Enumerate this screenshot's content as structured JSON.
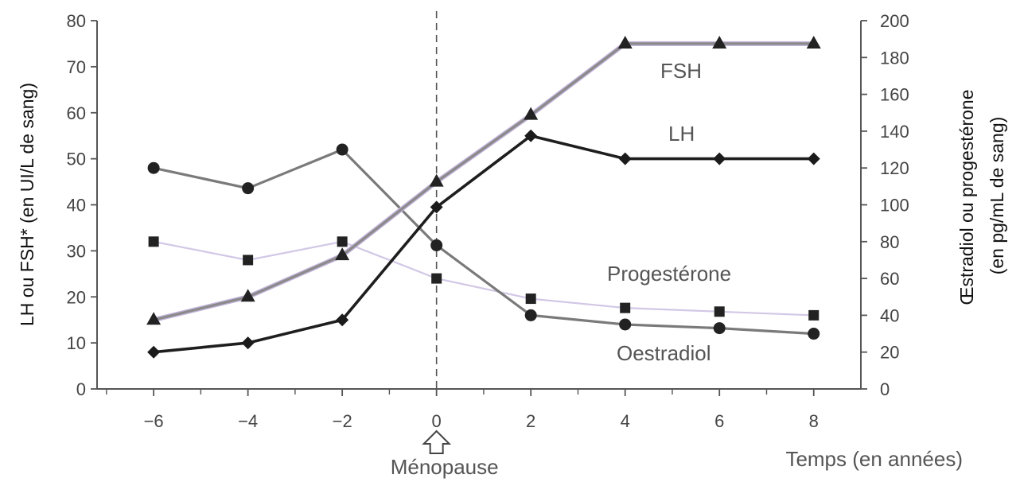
{
  "chart_data": {
    "type": "line",
    "x": [
      -6,
      -4,
      -2,
      0,
      2,
      4,
      6,
      8
    ],
    "xticks": [
      "-6",
      "-4",
      "-2",
      "0",
      "2",
      "4",
      "6",
      "8"
    ],
    "xlabel": "Temps (en années)",
    "xlim": [
      -7.2,
      9
    ],
    "ylabel_left": "LH ou FSH* (en UI/L de sang)",
    "ylim_left": [
      0,
      80
    ],
    "yticks_left": [
      "0",
      "10",
      "20",
      "30",
      "40",
      "50",
      "60",
      "70",
      "80"
    ],
    "ylabel_right": [
      "Œstradiol  ou progestérone",
      "(en pg/mL de sang)"
    ],
    "ylim_right": [
      0,
      200
    ],
    "yticks_right": [
      "0",
      "20",
      "40",
      "60",
      "80",
      "100",
      "120",
      "140",
      "160",
      "180",
      "200"
    ],
    "annotation": "Ménopause",
    "annotation_x": 0,
    "grid": false,
    "series": [
      {
        "name": "FSH",
        "axis": "left",
        "marker": "triangle",
        "color": "#8a8a8a",
        "glow": "#c3b2d9",
        "values": [
          15,
          20,
          29,
          45,
          59.5,
          75,
          75,
          75
        ]
      },
      {
        "name": "LH",
        "axis": "left",
        "marker": "diamond",
        "color": "#1e1e1e",
        "glow": null,
        "values": [
          8,
          10,
          15,
          39.5,
          55,
          50,
          50,
          50
        ]
      },
      {
        "name": "Progestérone",
        "axis": "right",
        "marker": "square",
        "color": "#d2c8e6",
        "glow": null,
        "values": [
          80,
          70,
          80,
          60,
          49,
          44,
          42,
          40
        ]
      },
      {
        "name": "Oestradiol",
        "axis": "right",
        "marker": "circle",
        "color": "#7a7a7a",
        "glow": null,
        "values": [
          120,
          109,
          130,
          78,
          40,
          35,
          33,
          30
        ]
      }
    ]
  }
}
